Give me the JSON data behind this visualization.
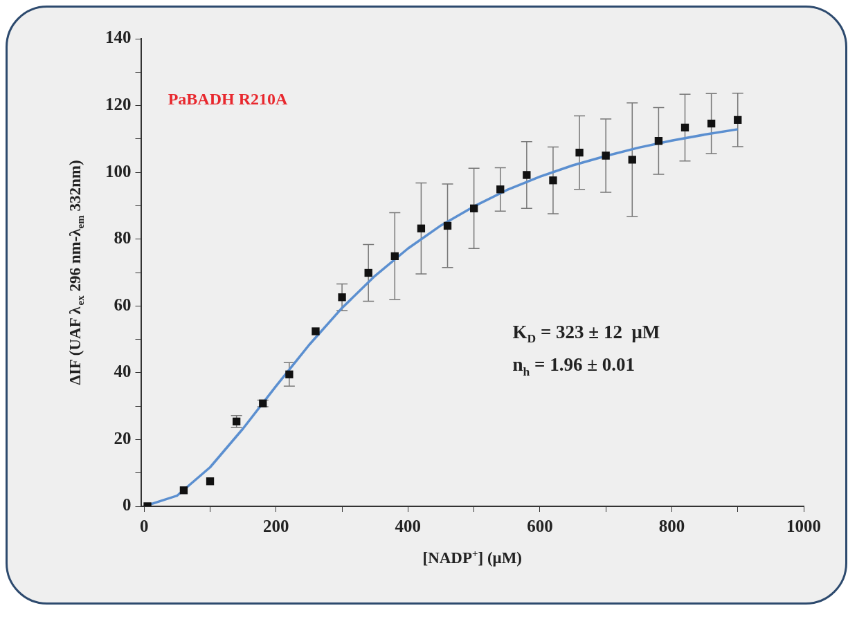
{
  "chart_data": {
    "type": "scatter",
    "xlabel": "[NADP$^{+}$] (μM)",
    "ylabel": "ΔIF (UAF λ$_{ex}$ 296 nm-λ$_{em}$ 332nm)",
    "annotations": [
      "PaBADH R210A",
      "K$_{D}$ = 323 ± 12  μM",
      "n$_{h}$ = 1.96 ± 0.01"
    ],
    "xlim": [
      -5,
      1000
    ],
    "xticks": [
      0,
      {
        "value": 100,
        "label": null
      },
      200,
      {
        "value": 300,
        "label": null
      },
      400,
      {
        "value": 500,
        "label": null
      },
      600,
      {
        "value": 700,
        "label": null
      },
      800,
      {
        "value": 900,
        "label": null
      },
      1000
    ],
    "ylim": [
      0,
      140
    ],
    "yticks": [
      0,
      {
        "value": 10,
        "label": null
      },
      20,
      {
        "value": 30,
        "label": null
      },
      40,
      {
        "value": 50,
        "label": null
      },
      60,
      {
        "value": 70,
        "label": null
      },
      80,
      {
        "value": 90,
        "label": null
      },
      100,
      {
        "value": 110,
        "label": null
      },
      120,
      {
        "value": 130,
        "label": null
      },
      140
    ],
    "grid": false,
    "legend": false,
    "series": [
      {
        "type": "scatter",
        "color": "#111111",
        "marker": "square",
        "x": [
          5,
          60,
          100,
          140,
          180,
          220,
          260,
          300,
          340,
          380,
          420,
          460,
          500,
          540,
          580,
          620,
          660,
          700,
          740,
          780,
          820,
          860,
          900
        ],
        "values": [
          0,
          4.8,
          7.5,
          25.4,
          30.8,
          39.5,
          52.4,
          62.6,
          69.9,
          74.9,
          83.2,
          84,
          89.2,
          94.9,
          99.2,
          97.6,
          105.9,
          105,
          103.8,
          109.4,
          113.4,
          114.6,
          115.7
        ],
        "errors": [
          null,
          null,
          null,
          1.8,
          1,
          3.5,
          null,
          4,
          8.5,
          13,
          13.6,
          12.5,
          12,
          6.5,
          10,
          10,
          11,
          11,
          17,
          10,
          10,
          9,
          8
        ]
      },
      {
        "type": "line",
        "color": "#5b8fd0",
        "marker": "none",
        "line_style": "solid",
        "x": [
          0,
          50,
          100,
          150,
          200,
          250,
          300,
          350,
          400,
          450,
          500,
          550,
          600,
          650,
          700,
          750,
          800,
          850,
          900
        ],
        "values": [
          0,
          3.2,
          11.7,
          23.3,
          36,
          48.3,
          59.4,
          69,
          77.2,
          84.1,
          89.8,
          94.7,
          98.7,
          102.1,
          104.9,
          107.4,
          109.5,
          111.3,
          112.9
        ]
      }
    ]
  }
}
